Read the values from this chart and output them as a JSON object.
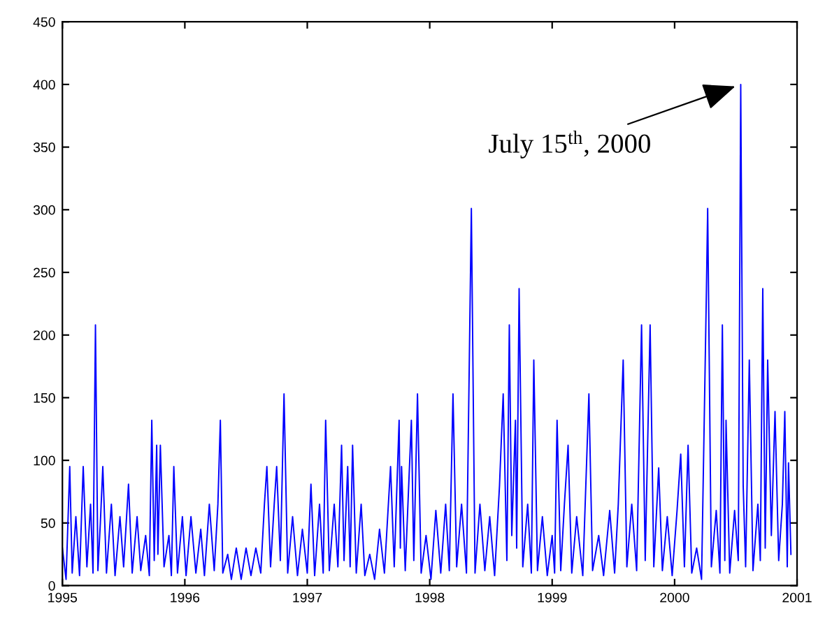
{
  "chart_data": {
    "type": "line",
    "x": [
      1995.0,
      1995.03,
      1995.06,
      1995.08,
      1995.11,
      1995.14,
      1995.17,
      1995.2,
      1995.23,
      1995.25,
      1995.27,
      1995.29,
      1995.31,
      1995.33,
      1995.36,
      1995.4,
      1995.43,
      1995.47,
      1995.5,
      1995.54,
      1995.57,
      1995.61,
      1995.64,
      1995.68,
      1995.71,
      1995.73,
      1995.75,
      1995.77,
      1995.78,
      1995.8,
      1995.83,
      1995.87,
      1995.89,
      1995.91,
      1995.94,
      1995.98,
      1996.01,
      1996.05,
      1996.09,
      1996.13,
      1996.16,
      1996.2,
      1996.24,
      1996.27,
      1996.29,
      1996.31,
      1996.35,
      1996.38,
      1996.42,
      1996.46,
      1996.5,
      1996.54,
      1996.58,
      1996.62,
      1996.65,
      1996.67,
      1996.7,
      1996.73,
      1996.75,
      1996.78,
      1996.81,
      1996.84,
      1996.88,
      1996.92,
      1996.96,
      1997.0,
      1997.03,
      1997.06,
      1997.1,
      1997.13,
      1997.15,
      1997.18,
      1997.22,
      1997.25,
      1997.28,
      1997.3,
      1997.33,
      1997.35,
      1997.37,
      1997.4,
      1997.44,
      1997.47,
      1997.51,
      1997.55,
      1997.59,
      1997.63,
      1997.68,
      1997.71,
      1997.75,
      1997.76,
      1997.77,
      1997.8,
      1997.85,
      1997.87,
      1997.9,
      1997.93,
      1997.97,
      1998.01,
      1998.05,
      1998.09,
      1998.13,
      1998.16,
      1998.19,
      1998.22,
      1998.26,
      1998.3,
      1998.34,
      1998.37,
      1998.41,
      1998.45,
      1998.49,
      1998.53,
      1998.57,
      1998.6,
      1998.63,
      1998.65,
      1998.67,
      1998.7,
      1998.71,
      1998.73,
      1998.76,
      1998.8,
      1998.83,
      1998.85,
      1998.88,
      1998.92,
      1998.96,
      1999.0,
      1999.02,
      1999.04,
      1999.07,
      1999.1,
      1999.13,
      1999.16,
      1999.2,
      1999.25,
      1999.3,
      1999.33,
      1999.38,
      1999.42,
      1999.47,
      1999.51,
      1999.54,
      1999.58,
      1999.61,
      1999.65,
      1999.69,
      1999.73,
      1999.76,
      1999.8,
      1999.83,
      1999.87,
      1999.9,
      1999.94,
      1999.98,
      2000.02,
      2000.05,
      2000.08,
      2000.11,
      2000.14,
      2000.18,
      2000.22,
      2000.26,
      2000.27,
      2000.3,
      2000.34,
      2000.37,
      2000.39,
      2000.41,
      2000.42,
      2000.45,
      2000.49,
      2000.52,
      2000.54,
      2000.56,
      2000.58,
      2000.61,
      2000.64,
      2000.68,
      2000.7,
      2000.72,
      2000.74,
      2000.76,
      2000.79,
      2000.82,
      2000.85,
      2000.88,
      2000.9,
      2000.92,
      2000.93,
      2000.95
    ],
    "series": [
      {
        "color": "#0000ff",
        "values": [
          30,
          5,
          95,
          10,
          55,
          8,
          95,
          15,
          65,
          10,
          208,
          12,
          50,
          95,
          10,
          65,
          8,
          55,
          15,
          81,
          10,
          55,
          12,
          40,
          8,
          132,
          20,
          112,
          25,
          112,
          15,
          40,
          8,
          95,
          10,
          55,
          8,
          55,
          10,
          45,
          8,
          65,
          12,
          65,
          132,
          10,
          25,
          5,
          30,
          5,
          30,
          8,
          30,
          10,
          65,
          95,
          15,
          65,
          95,
          20,
          153,
          10,
          55,
          8,
          45,
          10,
          81,
          8,
          65,
          10,
          132,
          12,
          65,
          15,
          112,
          20,
          95,
          15,
          112,
          10,
          65,
          8,
          25,
          5,
          45,
          10,
          95,
          15,
          132,
          30,
          95,
          12,
          132,
          20,
          153,
          10,
          40,
          5,
          60,
          10,
          65,
          12,
          153,
          15,
          65,
          10,
          301,
          10,
          65,
          12,
          55,
          8,
          80,
          153,
          20,
          208,
          40,
          132,
          30,
          237,
          15,
          65,
          10,
          180,
          12,
          55,
          8,
          40,
          10,
          132,
          12,
          65,
          112,
          10,
          55,
          8,
          153,
          12,
          40,
          8,
          60,
          10,
          65,
          180,
          15,
          65,
          12,
          208,
          20,
          208,
          15,
          94,
          12,
          55,
          8,
          60,
          105,
          15,
          112,
          10,
          30,
          5,
          237,
          301,
          15,
          60,
          10,
          208,
          20,
          132,
          10,
          60,
          20,
          400,
          80,
          15,
          180,
          12,
          65,
          20,
          237,
          30,
          180,
          40,
          139,
          20,
          65,
          139,
          15,
          98,
          25
        ]
      }
    ],
    "xlim": [
      1995,
      2001
    ],
    "xticks": [
      1995,
      1996,
      1997,
      1998,
      1999,
      2000,
      2001
    ],
    "ylim": [
      0,
      450
    ],
    "yticks": [
      0,
      50,
      100,
      150,
      200,
      250,
      300,
      350,
      400,
      450
    ],
    "grid": false,
    "marker": "none",
    "line_style": "solid",
    "annotations": [
      {
        "text": "July 15$^{th}$, 2000",
        "x": 2000.54,
        "y": 400
      }
    ]
  }
}
